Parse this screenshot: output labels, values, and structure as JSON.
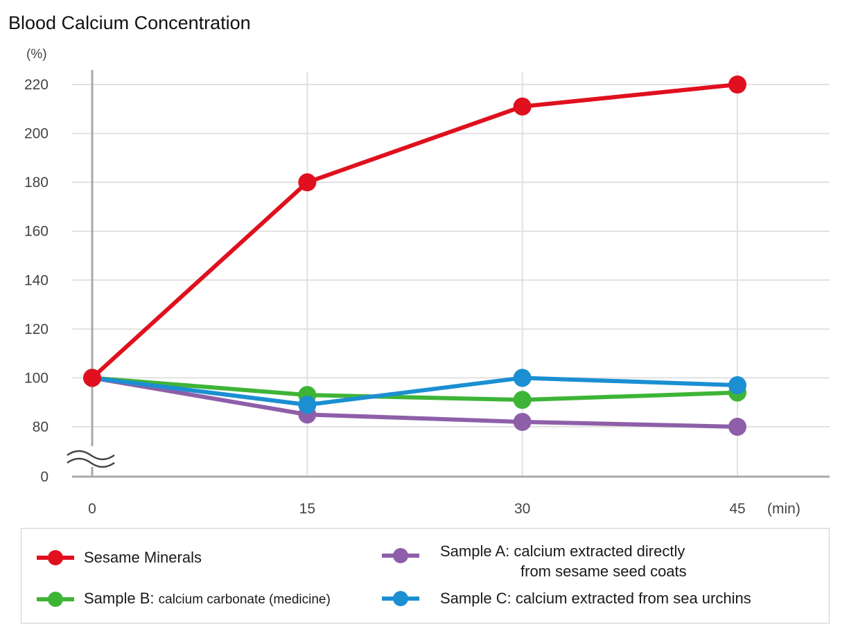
{
  "chart_data": {
    "type": "line",
    "title": "Blood Calcium Concentration",
    "y_unit": "(%)",
    "x_unit": "(min)",
    "x": [
      0,
      15,
      30,
      45
    ],
    "x_tick_labels": [
      "0",
      "15",
      "30",
      "45"
    ],
    "y_ticks": [
      0,
      80,
      100,
      120,
      140,
      160,
      180,
      200,
      220
    ],
    "y_tick_labels": [
      "0",
      "80",
      "100",
      "120",
      "140",
      "160",
      "180",
      "200",
      "220"
    ],
    "y_axis_break": "between 0 and 80",
    "ylim": [
      0,
      220
    ],
    "grid": true,
    "legend_placement": "bottom",
    "series": [
      {
        "key": "sesame",
        "name": "Sesame Minerals",
        "color": "#e0101e",
        "values": [
          100,
          180,
          211,
          220
        ]
      },
      {
        "key": "sample_a",
        "name": "Sample A: calcium extracted directly",
        "name_line2": "from sesame seed coats",
        "color": "#8e5fa8",
        "values": [
          100,
          85,
          82,
          80
        ]
      },
      {
        "key": "sample_b",
        "name": "Sample B:",
        "name_detail": "calcium carbonate (medicine)",
        "color": "#3eb437",
        "values": [
          100,
          93,
          91,
          94
        ]
      },
      {
        "key": "sample_c",
        "name": "Sample C: calcium extracted from sea urchins",
        "color": "#1b8fd2",
        "values": [
          100,
          89,
          100,
          97
        ]
      }
    ]
  }
}
